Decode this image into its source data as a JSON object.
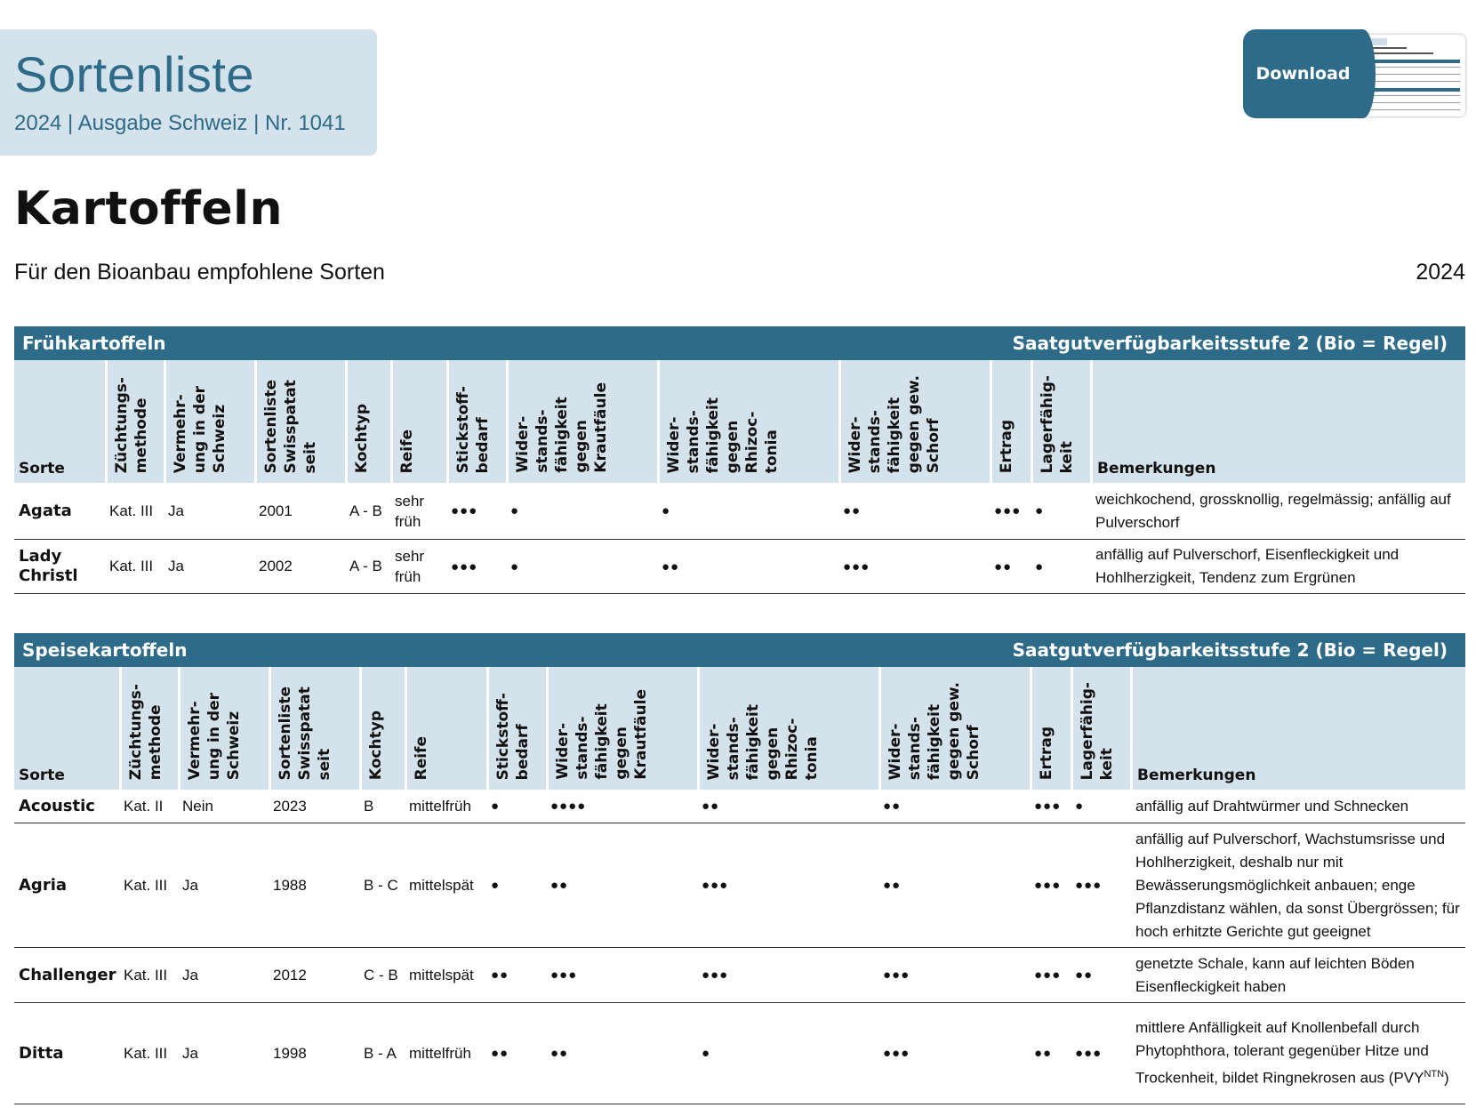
{
  "header": {
    "title": "Sortenliste",
    "subtitle": "2024 | Ausgabe Schweiz | Nr. 1041"
  },
  "download": {
    "label": "Download"
  },
  "page": {
    "title": "Kartoffeln",
    "subtitle": "Für den Bioanbau empfohlene Sorten",
    "year": "2024"
  },
  "colors": {
    "accent": "#2e6b88",
    "header_bg": "#d4e2eb"
  },
  "sections": [
    {
      "title": "Frühkartoffeln",
      "availability": "Saatgutverfügbarkeitsstufe 2 (Bio = Regel)",
      "columns": [
        "Sorte",
        "Züchtungs-\nmethode",
        "Vermehr-\nung in der\nSchweiz",
        "Sortenliste\nSwisspatat\nseit",
        "Kochtyp",
        "Reife",
        "Stickstoff-\nbedarf",
        "Wider-\nstands-\nfähigkeit\ngegen\nKrautfäule",
        "Wider-\nstands-\nfähigkeit\ngegen\nRhizoc-\ntonia",
        "Wider-\nstands-\nfähigkeit\ngegen gew.\nSchorf",
        "Ertrag",
        "Lagerfähig-\nkeit",
        "Bemerkungen"
      ],
      "rows": [
        {
          "sorte": "Agata",
          "methode": "Kat. III",
          "vermehrung": "Ja",
          "seit": "2001",
          "kochtyp": "A - B",
          "reife": "sehr früh",
          "stickstoff": "●●●",
          "krautfaeule": "●",
          "rhizoctonia": "●",
          "schorf": "●●",
          "ertrag": "●●●",
          "lager": "●",
          "bemerkungen": "weichkochend, grossknollig, regelmässig; anfällig auf Pulverschorf"
        },
        {
          "sorte": "Lady Christl",
          "methode": "Kat. III",
          "vermehrung": "Ja",
          "seit": "2002",
          "kochtyp": "A - B",
          "reife": "sehr früh",
          "stickstoff": "●●●",
          "krautfaeule": "●",
          "rhizoctonia": "●●",
          "schorf": "●●●",
          "ertrag": "●●",
          "lager": "●",
          "bemerkungen": "anfällig auf Pulverschorf, Eisenfleckigkeit und Hohlherzigkeit, Tendenz zum Ergrünen"
        }
      ]
    },
    {
      "title": "Speisekartoffeln",
      "availability": "Saatgutverfügbarkeitsstufe 2 (Bio = Regel)",
      "columns": [
        "Sorte",
        "Züchtungs-\nmethode",
        "Vermehr-\nung in der\nSchweiz",
        "Sortenliste\nSwisspatat\nseit",
        "Kochtyp",
        "Reife",
        "Stickstoff-\nbedarf",
        "Wider-\nstands-\nfähigkeit\ngegen\nKrautfäule",
        "Wider-\nstands-\nfähigkeit\ngegen\nRhizoc-\ntonia",
        "Wider-\nstands-\nfähigkeit\ngegen gew.\nSchorf",
        "Ertrag",
        "Lagerfähig-\nkeit",
        "Bemerkungen"
      ],
      "rows": [
        {
          "sorte": "Acoustic",
          "methode": "Kat. II",
          "vermehrung": "Nein",
          "seit": "2023",
          "kochtyp": "B",
          "reife": "mittelfrüh",
          "stickstoff": "●",
          "krautfaeule": "●●●●",
          "rhizoctonia": "●●",
          "schorf": "●●",
          "ertrag": "●●●",
          "lager": "●",
          "bemerkungen": "anfällig auf Drahtwürmer und Schnecken"
        },
        {
          "sorte": "Agria",
          "methode": "Kat. III",
          "vermehrung": "Ja",
          "seit": "1988",
          "kochtyp": "B - C",
          "reife": "mittelspät",
          "stickstoff": "●",
          "krautfaeule": "●●",
          "rhizoctonia": "●●●",
          "schorf": "●●",
          "ertrag": "●●●",
          "lager": "●●●",
          "bemerkungen": "anfällig auf Pulverschorf, Wachstumsrisse und Hohlherzigkeit, deshalb nur mit Bewässerungsmöglichkeit anbauen; enge Pflanzdistanz wählen, da sonst Übergrössen; für hoch erhitzte Gerichte gut geeignet"
        },
        {
          "sorte": "Challenger",
          "methode": "Kat. III",
          "vermehrung": "Ja",
          "seit": "2012",
          "kochtyp": "C - B",
          "reife": "mittelspät",
          "stickstoff": "●●",
          "krautfaeule": "●●●",
          "rhizoctonia": "●●●",
          "schorf": "●●●",
          "ertrag": "●●●",
          "lager": "●●",
          "bemerkungen": "genetzte Schale, kann auf leichten Böden Eisenfleckigkeit haben"
        },
        {
          "sorte": "Ditta",
          "methode": "Kat. III",
          "vermehrung": "Ja",
          "seit": "1998",
          "kochtyp": "B - A",
          "reife": "mittelfrüh",
          "stickstoff": "●●",
          "krautfaeule": "●●",
          "rhizoctonia": "●",
          "schorf": "●●●",
          "ertrag": "●●",
          "lager": "●●●",
          "bemerkungen": "mittlere Anfälligkeit auf Knollenbefall durch Phytophthora, tolerant gegenüber Hitze und Trockenheit, bildet Ringnekrosen aus (PVY",
          "bemerkungen_sup": "NTN",
          "bemerkungen_end": ")"
        }
      ]
    }
  ]
}
